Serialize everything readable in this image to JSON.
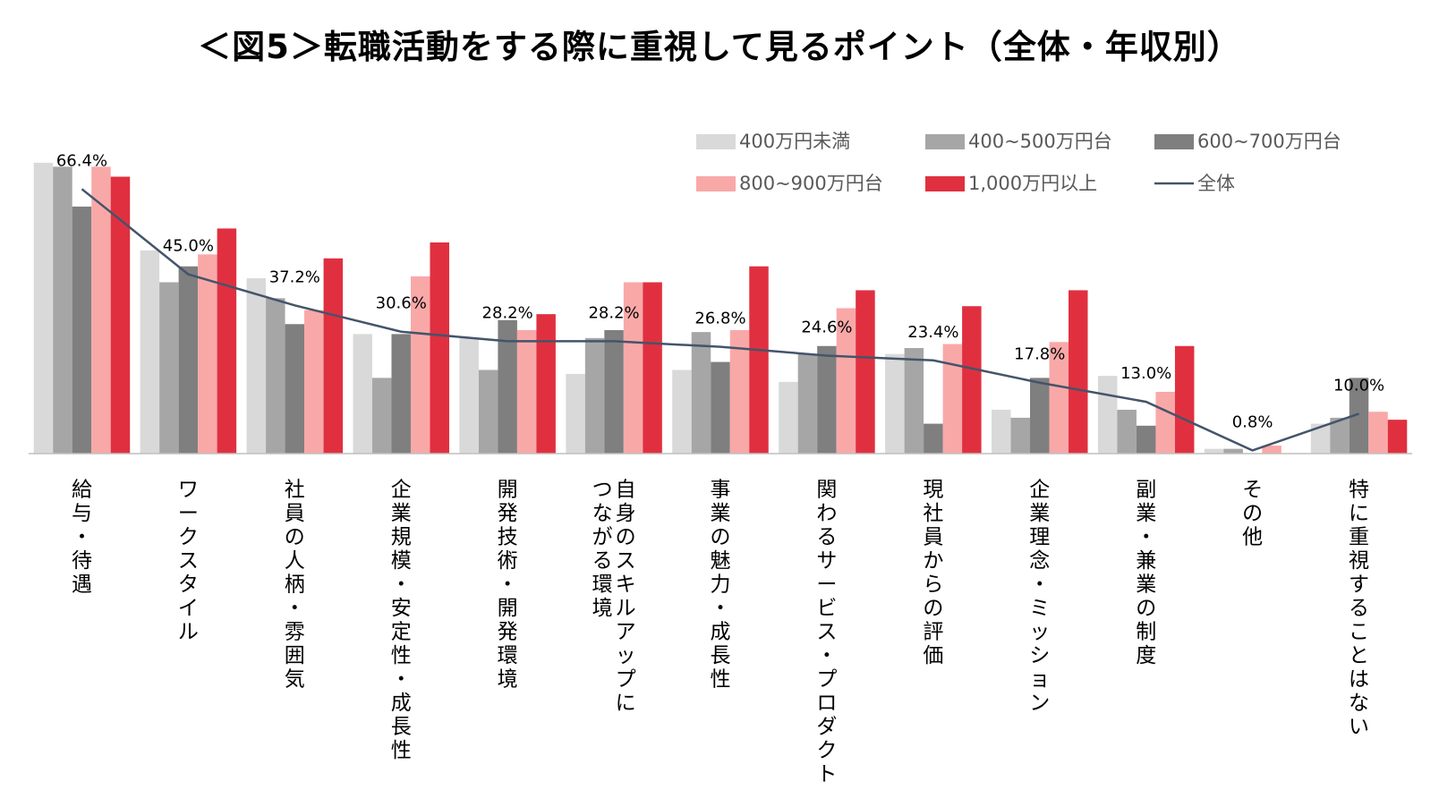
{
  "chart_data": {
    "type": "bar",
    "title": "＜図5＞転職活動をする際に重視して見るポイント（全体・年収別）",
    "categories": [
      "給与・待遇",
      "ワークスタイル",
      "社員の人柄・雰囲気",
      "企業規模・安定性・成長性",
      "開発技術・開発環境",
      "自身のスキルアップにつながる環境",
      "事業の魅力・成長性",
      "関わるサービス・プロダクト",
      "現社員からの評価",
      "企業理念・ミッション",
      "副業・兼業の制度",
      "その他",
      "特に重視することはない"
    ],
    "category_label_lines": [
      [
        "給与・待遇"
      ],
      [
        "ワークスタイル"
      ],
      [
        "社員の人柄・雰囲気"
      ],
      [
        "企業規模・安定性・成長性"
      ],
      [
        "開発技術・開発環境"
      ],
      [
        "自身のスキルアップに",
        "つながる環境"
      ],
      [
        "事業の魅力・成長性"
      ],
      [
        "関わるサービス・プロダクト"
      ],
      [
        "現社員からの評価"
      ],
      [
        "企業理念・ミッション"
      ],
      [
        "副業・兼業の制度"
      ],
      [
        "その他"
      ],
      [
        "特に重視することはない"
      ]
    ],
    "series": [
      {
        "name": "400万円未満",
        "color": "#d9d9d9",
        "values": [
          73.0,
          51.0,
          44.0,
          30.0,
          29.0,
          20.0,
          21.0,
          18.0,
          25.0,
          11.0,
          19.5,
          1.2,
          7.5
        ]
      },
      {
        "name": "400~500万円台",
        "color": "#a6a6a6",
        "values": [
          72.0,
          43.0,
          39.0,
          19.0,
          21.0,
          29.0,
          30.5,
          25.0,
          26.5,
          9.0,
          11.0,
          1.2,
          9.0
        ]
      },
      {
        "name": "600~700万円台",
        "color": "#7f7f7f",
        "values": [
          62.0,
          47.0,
          32.5,
          30.0,
          33.5,
          31.0,
          23.0,
          27.0,
          7.5,
          19.0,
          7.0,
          0.0,
          19.0
        ]
      },
      {
        "name": "800~900万円台",
        "color": "#f9a8a8",
        "values": [
          72.0,
          50.0,
          36.0,
          44.5,
          31.0,
          43.0,
          31.0,
          36.5,
          27.5,
          28.0,
          15.5,
          2.0,
          10.5
        ]
      },
      {
        "name": "1,000万円以上",
        "color": "#e03040",
        "values": [
          69.5,
          56.5,
          49.0,
          53.0,
          35.0,
          43.0,
          47.0,
          41.0,
          37.0,
          41.0,
          27.0,
          0.0,
          8.5
        ]
      }
    ],
    "overall": {
      "name": "全体",
      "color": "#44546a",
      "values": [
        66.4,
        45.0,
        37.2,
        30.6,
        28.2,
        28.2,
        26.8,
        24.6,
        23.4,
        17.8,
        13.0,
        0.8,
        10.0
      ],
      "labels": [
        "66.4%",
        "45.0%",
        "37.2%",
        "30.6%",
        "28.2%",
        "28.2%",
        "26.8%",
        "24.6%",
        "23.4%",
        "17.8%",
        "13.0%",
        "0.8%",
        "10.0%"
      ]
    },
    "ylim": [
      0,
      75
    ],
    "grid": false,
    "legend_position": "top-right",
    "xlabel": "",
    "ylabel": ""
  }
}
